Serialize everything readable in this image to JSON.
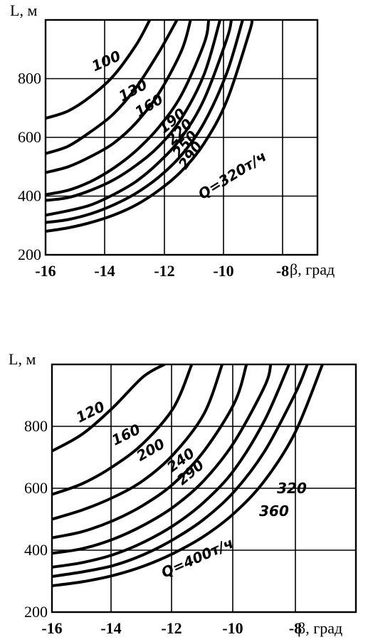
{
  "chart_data": [
    {
      "type": "line",
      "ylabel": "L, м",
      "xlabel": "β, град",
      "xlim": [
        -16,
        -4
      ],
      "ylim": [
        200,
        1000
      ],
      "x_ticks": [
        "-16",
        "-14",
        "-12",
        "-10",
        "-8"
      ],
      "y_ticks": [
        "200",
        "400",
        "600",
        "800"
      ],
      "grid": true,
      "series": [
        {
          "name": "100",
          "x": [
            -16,
            -15,
            -14,
            -13,
            -12,
            -11.4
          ],
          "y": [
            665,
            690,
            740,
            810,
            915,
            1000
          ]
        },
        {
          "name": "130",
          "x": [
            -16,
            -15,
            -14,
            -13,
            -12,
            -11,
            -10.2
          ],
          "y": [
            545,
            570,
            620,
            680,
            770,
            890,
            1000
          ]
        },
        {
          "name": "160",
          "x": [
            -16,
            -15,
            -14,
            -13,
            -12,
            -11,
            -10,
            -9.6
          ],
          "y": [
            480,
            500,
            535,
            580,
            650,
            750,
            895,
            1000
          ]
        },
        {
          "name": "190",
          "x": [
            -16,
            -15,
            -14,
            -13,
            -12,
            -11,
            -10,
            -9,
            -8.8
          ],
          "y": [
            405,
            420,
            450,
            495,
            555,
            635,
            745,
            920,
            1000
          ]
        },
        {
          "name": "220",
          "x": [
            -16,
            -15,
            -14,
            -13,
            -12,
            -11,
            -10,
            -9,
            -8.3
          ],
          "y": [
            385,
            395,
            420,
            455,
            505,
            570,
            665,
            815,
            1000
          ]
        },
        {
          "name": "250",
          "x": [
            -16,
            -15,
            -14,
            -13,
            -12,
            -11,
            -10,
            -9,
            -8,
            -7.8
          ],
          "y": [
            335,
            350,
            370,
            405,
            450,
            515,
            600,
            730,
            935,
            1000
          ]
        },
        {
          "name": "290",
          "x": [
            -16,
            -15,
            -14,
            -13,
            -12,
            -11,
            -10,
            -9,
            -8,
            -7.3
          ],
          "y": [
            310,
            320,
            340,
            370,
            410,
            465,
            540,
            650,
            820,
            1000
          ]
        },
        {
          "name": "Q=320т/ч",
          "x": [
            -16,
            -15,
            -14,
            -13,
            -12,
            -11,
            -10,
            -9,
            -8,
            -7,
            -6.9
          ],
          "y": [
            280,
            292,
            310,
            335,
            370,
            420,
            485,
            580,
            725,
            960,
            1000
          ]
        }
      ],
      "labels": [
        "100",
        "130",
        "160",
        "190",
        "220",
        "250",
        "290",
        "Q=320т/ч"
      ]
    },
    {
      "type": "line",
      "ylabel": "L, м",
      "xlabel": "β, град",
      "xlim": [
        -16,
        -6
      ],
      "ylim": [
        200,
        1000
      ],
      "x_ticks": [
        "-16",
        "-14",
        "-12",
        "-10",
        "-8"
      ],
      "y_ticks": [
        "200",
        "400",
        "600",
        "800"
      ],
      "grid": true,
      "series": [
        {
          "name": "120",
          "x": [
            -16,
            -15,
            -14,
            -13,
            -12.3
          ],
          "y": [
            720,
            775,
            860,
            960,
            1000
          ]
        },
        {
          "name": "160",
          "x": [
            -16,
            -15,
            -14,
            -13,
            -12,
            -11.4
          ],
          "y": [
            580,
            615,
            670,
            745,
            860,
            1000
          ]
        },
        {
          "name": "200",
          "x": [
            -16,
            -15,
            -14,
            -13,
            -12,
            -11,
            -10.4
          ],
          "y": [
            500,
            530,
            570,
            625,
            710,
            840,
            1000
          ]
        },
        {
          "name": "240",
          "x": [
            -16,
            -15,
            -14,
            -13,
            -12,
            -11,
            -10,
            -9.6
          ],
          "y": [
            440,
            460,
            495,
            545,
            615,
            720,
            875,
            1000
          ]
        },
        {
          "name": "290",
          "x": [
            -16,
            -15,
            -14,
            -13,
            -12,
            -11,
            -10,
            -9,
            -8.8
          ],
          "y": [
            390,
            405,
            435,
            480,
            540,
            625,
            750,
            930,
            1000
          ]
        },
        {
          "name": "320",
          "x": [
            -16,
            -15,
            -14,
            -13,
            -12,
            -11,
            -10,
            -9,
            -8.2
          ],
          "y": [
            345,
            360,
            385,
            425,
            480,
            555,
            660,
            820,
            1000
          ]
        },
        {
          "name": "360",
          "x": [
            -16,
            -15,
            -14,
            -13,
            -12,
            -11,
            -10,
            -9,
            -8,
            -7.6
          ],
          "y": [
            315,
            330,
            350,
            385,
            435,
            500,
            590,
            720,
            905,
            1000
          ]
        },
        {
          "name": "Q=400т/ч",
          "x": [
            -16,
            -15,
            -14,
            -13,
            -12,
            -11,
            -10,
            -9,
            -8,
            -7.1
          ],
          "y": [
            285,
            298,
            318,
            348,
            390,
            445,
            520,
            625,
            780,
            1000
          ]
        }
      ],
      "labels": [
        "120",
        "160",
        "200",
        "240",
        "290",
        "320",
        "360",
        "Q=400т/ч"
      ]
    }
  ]
}
